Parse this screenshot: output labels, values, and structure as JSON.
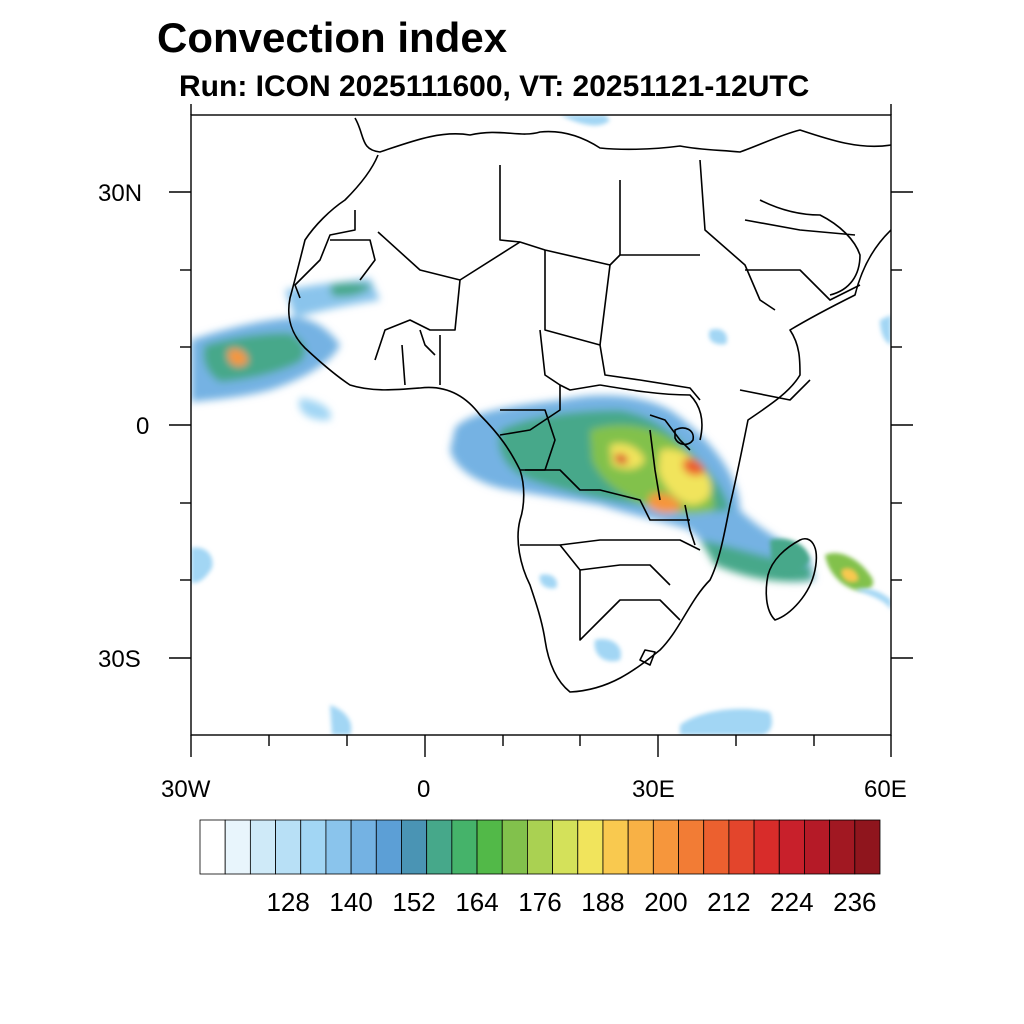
{
  "title": "Convection index",
  "subtitle": "Run: ICON 2025111600,  VT: 20251121-12UTC",
  "axes": {
    "lat_labels": [
      "30N",
      "0",
      "30S"
    ],
    "lon_labels": [
      "30W",
      "0",
      "30E",
      "60E"
    ]
  },
  "colorbar": {
    "labels": [
      "128",
      "140",
      "152",
      "164",
      "176",
      "188",
      "200",
      "212",
      "224",
      "236"
    ],
    "colors": [
      "#ffffff",
      "#e8f5fc",
      "#cfeaf8",
      "#b8e0f6",
      "#a2d6f4",
      "#8ac4ec",
      "#74b2e3",
      "#5c9fd6",
      "#4a94b4",
      "#46a88a",
      "#45b36a",
      "#52b948",
      "#82c14c",
      "#aad152",
      "#d4e15a",
      "#f1e45c",
      "#f9c94f",
      "#f8b145",
      "#f6963c",
      "#f27c35",
      "#ec602f",
      "#e3452c",
      "#d82c2a",
      "#c8202b",
      "#b51a27",
      "#a11822",
      "#8f151d"
    ]
  },
  "convection_regions": [
    {
      "name": "central-africa-band",
      "intensity": "high"
    },
    {
      "name": "west-africa-coast",
      "intensity": "medium"
    },
    {
      "name": "madagascar",
      "intensity": "medium"
    },
    {
      "name": "atlantic-southwest",
      "intensity": "low"
    }
  ]
}
